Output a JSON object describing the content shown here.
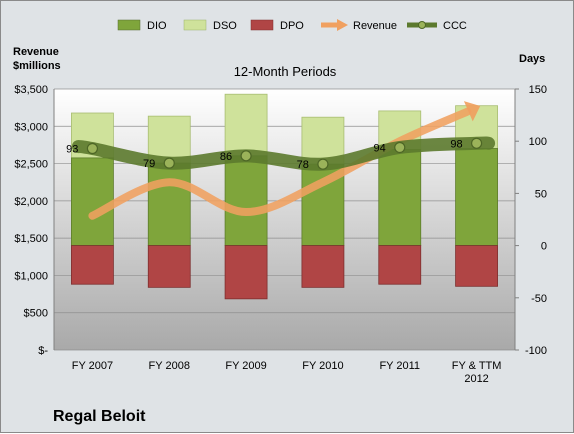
{
  "company": "Regal Beloit",
  "chart_data": {
    "type": "bar",
    "title": "12-Month Periods",
    "categories": [
      "FY 2007",
      "FY 2008",
      "FY 2009",
      "FY 2010",
      "FY 2011",
      "FY & TTM 2012"
    ],
    "left_axis": {
      "label_line1": "Revenue",
      "label_line2": "$millions",
      "ylim": [
        0,
        3500
      ],
      "ticks": [
        0,
        500,
        1000,
        1500,
        2000,
        2500,
        3000,
        3500
      ],
      "tick_labels": [
        "$-",
        "$500",
        "$1,000",
        "$1,500",
        "$2,000",
        "$2,500",
        "$3,000",
        "$3,500"
      ]
    },
    "right_axis": {
      "label": "Days",
      "ylim": [
        -100,
        150
      ],
      "ticks": [
        -100,
        -50,
        0,
        50,
        100,
        150
      ],
      "tick_labels": [
        "-100",
        "-50",
        "0",
        "50",
        "100",
        "150"
      ]
    },
    "series": [
      {
        "name": "DIO",
        "type": "stacked-bar",
        "color": "#7fa53b",
        "values": [
          84,
          79,
          86,
          78,
          92,
          93
        ]
      },
      {
        "name": "DSO",
        "type": "stacked-bar",
        "color": "#cfe29b",
        "values": [
          43,
          45,
          59,
          45,
          37,
          41
        ]
      },
      {
        "name": "DPO",
        "type": "negative-bar",
        "color": "#b04545",
        "values": [
          -37,
          -40,
          -51,
          -40,
          -37,
          -39
        ]
      },
      {
        "name": "Revenue",
        "type": "line",
        "color": "#f0a060",
        "axis": "left",
        "values": [
          1800,
          2250,
          1850,
          2250,
          2800,
          3250
        ]
      },
      {
        "name": "CCC",
        "type": "line",
        "color": "#5c7a2e",
        "axis": "right",
        "values": [
          93,
          79,
          86,
          78,
          94,
          98
        ]
      }
    ],
    "ccc_labels": [
      "93",
      "79",
      "86",
      "78",
      "94",
      "98"
    ],
    "legend_position": "top"
  }
}
